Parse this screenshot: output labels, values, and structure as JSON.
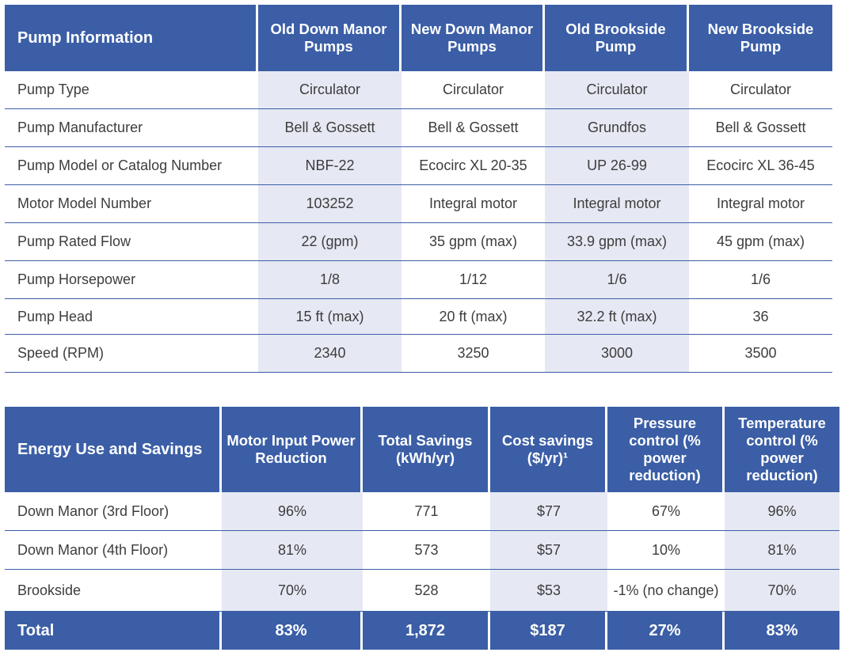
{
  "pump_table": {
    "headers": [
      "Pump Information",
      "Old Down Manor Pumps",
      "New Down Manor Pumps",
      "Old Brookside Pump",
      "New Brookside Pump"
    ],
    "rows": [
      [
        "Pump Type",
        "Circulator",
        "Circulator",
        "Circulator",
        "Circulator"
      ],
      [
        "Pump Manufacturer",
        "Bell & Gossett",
        "Bell & Gossett",
        "Grundfos",
        "Bell & Gossett"
      ],
      [
        "Pump Model or Catalog Number",
        "NBF-22",
        "Ecocirc XL 20-35",
        "UP 26-99",
        "Ecocirc XL 36-45"
      ],
      [
        "Motor Model Number",
        "103252",
        "Integral motor",
        "Integral motor",
        "Integral motor"
      ],
      [
        "Pump Rated Flow",
        "22 (gpm)",
        "35 gpm (max)",
        "33.9 gpm (max)",
        "45 gpm (max)"
      ],
      [
        "Pump Horsepower",
        "1/8",
        "1/12",
        "1/6",
        "1/6"
      ],
      [
        "Pump Head",
        "15 ft (max)",
        "20 ft (max)",
        "32.2 ft (max)",
        "36"
      ],
      [
        "Speed (RPM)",
        "2340",
        "3250",
        "3000",
        "3500"
      ]
    ]
  },
  "energy_table": {
    "headers": [
      "Energy Use and Savings",
      "Motor Input Power Reduction",
      "Total Savings (kWh/yr)",
      "Cost savings ($/yr)¹",
      "Pressure control (% power reduction)",
      "Temperature control (% power reduction)"
    ],
    "rows": [
      [
        "Down Manor (3rd Floor)",
        "96%",
        "771",
        "$77",
        "67%",
        "96%"
      ],
      [
        "Down Manor (4th Floor)",
        "81%",
        "573",
        "$57",
        "10%",
        "81%"
      ],
      [
        "Brookside",
        "70%",
        "528",
        "$53",
        "-1% (no change)",
        "70%"
      ]
    ],
    "total": [
      "Total",
      "83%",
      "1,872",
      "$187",
      "27%",
      "83%"
    ]
  }
}
